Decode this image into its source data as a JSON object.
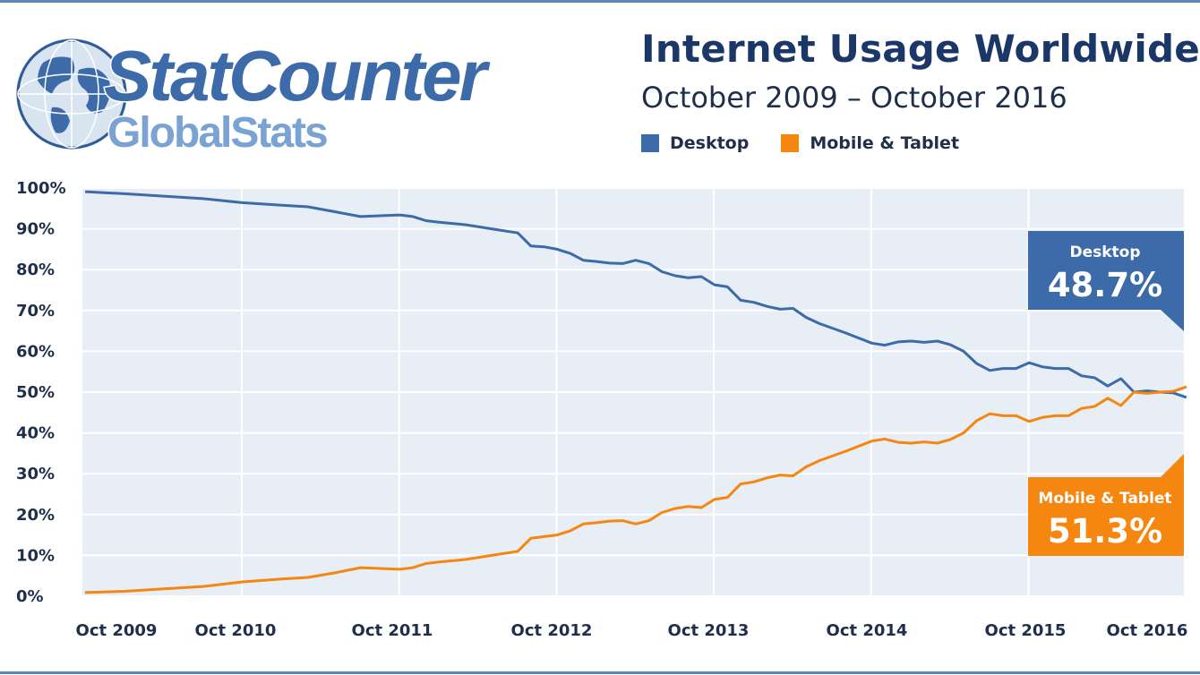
{
  "logo": {
    "brand_line1": "StatCounter",
    "brand_line2": "GlobalStats"
  },
  "colors": {
    "desktop": "#3d6aa8",
    "mobile": "#f5860f",
    "plot_bg": "#e8eef6",
    "title": "#1a3767"
  },
  "chart_data": {
    "type": "line",
    "title": "Internet Usage Worldwide",
    "subtitle": "October 2009 – October 2016",
    "legend": [
      "Desktop",
      "Mobile & Tablet"
    ],
    "legend_position": "top",
    "grid": true,
    "ylim": [
      0,
      100
    ],
    "y_ticks": [
      "0%",
      "10%",
      "20%",
      "30%",
      "40%",
      "50%",
      "60%",
      "70%",
      "80%",
      "90%",
      "100%"
    ],
    "x_ticks": [
      "Oct 2009",
      "Oct 2010",
      "Oct 2011",
      "Oct 2012",
      "Oct 2013",
      "Oct 2014",
      "Oct 2015",
      "Oct 2016"
    ],
    "x_range": [
      "2009-10",
      "2016-10"
    ],
    "series": [
      {
        "name": "Desktop",
        "points": [
          [
            "2009-10",
            99.1
          ],
          [
            "2010-01",
            98.6
          ],
          [
            "2010-04",
            98.0
          ],
          [
            "2010-07",
            97.4
          ],
          [
            "2010-10",
            96.4
          ],
          [
            "2011-01",
            95.8
          ],
          [
            "2011-03",
            95.4
          ],
          [
            "2011-05",
            94.2
          ],
          [
            "2011-07",
            93.0
          ],
          [
            "2011-10",
            93.4
          ],
          [
            "2011-11",
            93.0
          ],
          [
            "2011-12",
            92.0
          ],
          [
            "2012-01",
            91.6
          ],
          [
            "2012-03",
            91.0
          ],
          [
            "2012-05",
            90.0
          ],
          [
            "2012-07",
            89.0
          ],
          [
            "2012-08",
            85.8
          ],
          [
            "2012-09",
            85.6
          ],
          [
            "2012-10",
            85.0
          ],
          [
            "2012-11",
            84.0
          ],
          [
            "2012-12",
            82.3
          ],
          [
            "2013-01",
            82.0
          ],
          [
            "2013-02",
            81.6
          ],
          [
            "2013-03",
            81.5
          ],
          [
            "2013-04",
            82.3
          ],
          [
            "2013-05",
            81.5
          ],
          [
            "2013-06",
            79.5
          ],
          [
            "2013-07",
            78.5
          ],
          [
            "2013-08",
            78.0
          ],
          [
            "2013-09",
            78.3
          ],
          [
            "2013-10",
            76.3
          ],
          [
            "2013-11",
            75.8
          ],
          [
            "2013-12",
            72.5
          ],
          [
            "2014-01",
            72.0
          ],
          [
            "2014-02",
            71.0
          ],
          [
            "2014-03",
            70.3
          ],
          [
            "2014-04",
            70.5
          ],
          [
            "2014-05",
            68.3
          ],
          [
            "2014-06",
            66.8
          ],
          [
            "2014-08",
            64.5
          ],
          [
            "2014-10",
            62.0
          ],
          [
            "2014-11",
            61.5
          ],
          [
            "2014-12",
            62.3
          ],
          [
            "2015-01",
            62.5
          ],
          [
            "2015-02",
            62.2
          ],
          [
            "2015-03",
            62.5
          ],
          [
            "2015-04",
            61.6
          ],
          [
            "2015-05",
            60.0
          ],
          [
            "2015-06",
            57.0
          ],
          [
            "2015-07",
            55.3
          ],
          [
            "2015-08",
            55.8
          ],
          [
            "2015-09",
            55.8
          ],
          [
            "2015-10",
            57.2
          ],
          [
            "2015-11",
            56.2
          ],
          [
            "2015-12",
            55.8
          ],
          [
            "2016-01",
            55.8
          ],
          [
            "2016-02",
            54.0
          ],
          [
            "2016-03",
            53.5
          ],
          [
            "2016-04",
            51.5
          ],
          [
            "2016-05",
            53.3
          ],
          [
            "2016-06",
            50.0
          ],
          [
            "2016-07",
            50.3
          ],
          [
            "2016-08",
            50.0
          ],
          [
            "2016-09",
            49.8
          ],
          [
            "2016-10",
            48.7
          ]
        ]
      },
      {
        "name": "Mobile & Tablet",
        "points": [
          [
            "2009-10",
            0.9
          ],
          [
            "2010-01",
            1.2
          ],
          [
            "2010-04",
            1.8
          ],
          [
            "2010-07",
            2.4
          ],
          [
            "2010-10",
            3.5
          ],
          [
            "2011-01",
            4.2
          ],
          [
            "2011-03",
            4.6
          ],
          [
            "2011-05",
            5.7
          ],
          [
            "2011-07",
            7.0
          ],
          [
            "2011-10",
            6.6
          ],
          [
            "2011-11",
            7.0
          ],
          [
            "2011-12",
            8.0
          ],
          [
            "2012-01",
            8.4
          ],
          [
            "2012-03",
            9.0
          ],
          [
            "2012-05",
            10.0
          ],
          [
            "2012-07",
            11.0
          ],
          [
            "2012-08",
            14.2
          ],
          [
            "2012-09",
            14.6
          ],
          [
            "2012-10",
            15.0
          ],
          [
            "2012-11",
            16.0
          ],
          [
            "2012-12",
            17.7
          ],
          [
            "2013-01",
            18.0
          ],
          [
            "2013-02",
            18.4
          ],
          [
            "2013-03",
            18.5
          ],
          [
            "2013-04",
            17.7
          ],
          [
            "2013-05",
            18.5
          ],
          [
            "2013-06",
            20.5
          ],
          [
            "2013-07",
            21.5
          ],
          [
            "2013-08",
            22.0
          ],
          [
            "2013-09",
            21.7
          ],
          [
            "2013-10",
            23.7
          ],
          [
            "2013-11",
            24.2
          ],
          [
            "2013-12",
            27.5
          ],
          [
            "2014-01",
            28.0
          ],
          [
            "2014-02",
            29.0
          ],
          [
            "2014-03",
            29.7
          ],
          [
            "2014-04",
            29.5
          ],
          [
            "2014-05",
            31.7
          ],
          [
            "2014-06",
            33.2
          ],
          [
            "2014-08",
            35.5
          ],
          [
            "2014-10",
            38.0
          ],
          [
            "2014-11",
            38.5
          ],
          [
            "2014-12",
            37.7
          ],
          [
            "2015-01",
            37.5
          ],
          [
            "2015-02",
            37.8
          ],
          [
            "2015-03",
            37.5
          ],
          [
            "2015-04",
            38.4
          ],
          [
            "2015-05",
            40.0
          ],
          [
            "2015-06",
            43.0
          ],
          [
            "2015-07",
            44.7
          ],
          [
            "2015-08",
            44.2
          ],
          [
            "2015-09",
            44.2
          ],
          [
            "2015-10",
            42.8
          ],
          [
            "2015-11",
            43.8
          ],
          [
            "2015-12",
            44.2
          ],
          [
            "2016-01",
            44.2
          ],
          [
            "2016-02",
            46.0
          ],
          [
            "2016-03",
            46.5
          ],
          [
            "2016-04",
            48.5
          ],
          [
            "2016-05",
            46.7
          ],
          [
            "2016-06",
            50.0
          ],
          [
            "2016-07",
            49.7
          ],
          [
            "2016-08",
            50.0
          ],
          [
            "2016-09",
            50.2
          ],
          [
            "2016-10",
            51.3
          ]
        ]
      }
    ],
    "callouts": [
      {
        "series": "Desktop",
        "label": "Desktop",
        "value": "48.7%"
      },
      {
        "series": "Mobile & Tablet",
        "label": "Mobile & Tablet",
        "value": "51.3%"
      }
    ]
  }
}
